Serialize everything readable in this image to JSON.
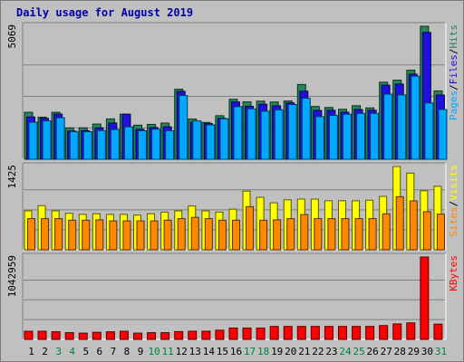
{
  "chart_data": {
    "type": "bar",
    "title": "Daily usage for August 2019",
    "categories": [
      "1",
      "2",
      "3",
      "4",
      "5",
      "6",
      "7",
      "8",
      "9",
      "10",
      "11",
      "12",
      "13",
      "14",
      "15",
      "16",
      "17",
      "18",
      "19",
      "20",
      "21",
      "22",
      "23",
      "24",
      "25",
      "26",
      "27",
      "28",
      "29",
      "30",
      "31"
    ],
    "weekend_days": [
      "3",
      "4",
      "10",
      "11",
      "17",
      "18",
      "24",
      "25",
      "31"
    ],
    "panels": [
      {
        "id": "pages-files-hits",
        "axis_max_label": "5069",
        "ylim": [
          0,
          5069
        ],
        "axis_title": [
          "Pages",
          "Files",
          "Hits"
        ],
        "series": [
          {
            "name": "Hits",
            "color": "#228855",
            "values": [
              1790,
              1605,
              1790,
              1195,
              1197,
              1343,
              1538,
              1719,
              1300,
              1329,
              1381,
              2669,
              1533,
              1404,
              1661,
              2285,
              2188,
              2214,
              2183,
              2222,
              2848,
              2012,
              1974,
              1905,
              2040,
              1957,
              2936,
              3014,
              3393,
              5069,
              2604
            ]
          },
          {
            "name": "Files",
            "color": "#1f10dd",
            "values": [
              1612,
              1562,
              1720,
              1077,
              1091,
              1199,
              1383,
              1719,
              1143,
              1210,
              1237,
              2589,
              1413,
              1362,
              1561,
              2183,
              2020,
              2095,
              2036,
              2151,
              2594,
              1864,
              1866,
              1795,
              1897,
              1871,
              2824,
              2867,
              3244,
              4834,
              2448
            ]
          },
          {
            "name": "Pages",
            "color": "#00a8ff",
            "values": [
              1412,
              1462,
              1584,
              1054,
              1048,
              1094,
              1133,
              1238,
              1086,
              1145,
              1088,
              2429,
              1462,
              1309,
              1542,
              2007,
              1922,
              1832,
              1884,
              2086,
              2326,
              1625,
              1673,
              1716,
              1748,
              1748,
              2481,
              2452,
              3167,
              2145,
              1896
            ]
          }
        ]
      },
      {
        "id": "visits-sites",
        "axis_max_label": "1425",
        "ylim": [
          0,
          1425
        ],
        "axis_title": [
          "Sites",
          "Visits"
        ],
        "series": [
          {
            "name": "Visits",
            "color": "#ffff00",
            "values": [
              666,
              756,
              666,
              624,
              606,
              617,
              606,
              606,
              594,
              617,
              645,
              666,
              749,
              666,
              645,
              695,
              1004,
              898,
              804,
              855,
              867,
              867,
              839,
              839,
              839,
              849,
              914,
              1425,
              1312,
              1010,
              1087
            ]
          },
          {
            "name": "Sites",
            "color": "#ff8800",
            "values": [
              533,
              533,
              533,
              506,
              506,
              512,
              494,
              494,
              494,
              494,
              506,
              533,
              555,
              533,
              506,
              506,
              738,
              506,
              512,
              533,
              603,
              533,
              533,
              533,
              533,
              533,
              616,
              908,
              837,
              652,
              611
            ]
          }
        ]
      },
      {
        "id": "kbytes",
        "axis_max_label": "1042959",
        "ylim": [
          0,
          1042959
        ],
        "axis_title": [
          "KBytes"
        ],
        "series": [
          {
            "name": "KBytes",
            "color": "#ff0000",
            "values": [
              103000,
              103000,
              96700,
              85100,
              79000,
              90000,
              96000,
              103000,
              79000,
              85000,
              85000,
              99000,
              103000,
              103000,
              116000,
              144000,
              144000,
              144000,
              164000,
              164000,
              164000,
              164000,
              164000,
              164000,
              164000,
              164000,
              175000,
              196000,
              209000,
              1042959,
              193000
            ]
          }
        ]
      }
    ]
  }
}
